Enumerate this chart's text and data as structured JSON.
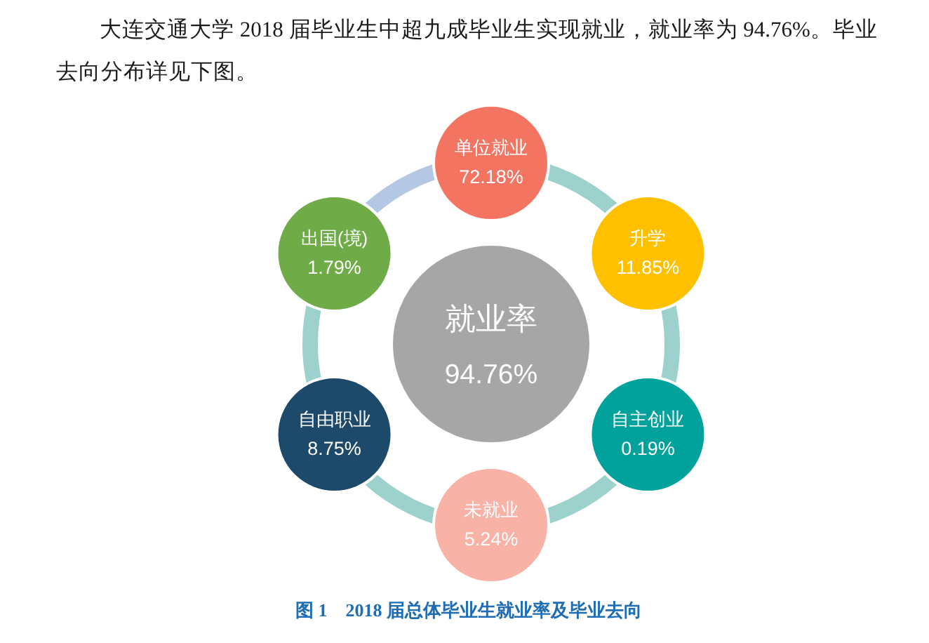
{
  "chart_data": {
    "type": "other",
    "title": "图 1　2018 届总体毕业生就业率及毕业去向",
    "annotations": [
      "大连交通大学 2018 届毕业生中超九成毕业生实现就业，就业率为 94.76%。毕业去向分布详见下图。"
    ],
    "categories": [
      "就业率",
      "单位就业",
      "升学",
      "自主创业",
      "未就业",
      "自由职业",
      "出国(境)"
    ],
    "values": [
      94.76,
      72.18,
      11.85,
      0.19,
      5.24,
      8.75,
      1.79
    ],
    "value_labels": [
      "94.76%",
      "72.18%",
      "11.85%",
      "0.19%",
      "5.24%",
      "8.75%",
      "1.79%"
    ],
    "colors": [
      "#a6a6a6",
      "#f47462",
      "#ffc000",
      "#00a29b",
      "#f8b2a6",
      "#1d4a6b",
      "#6fac47"
    ]
  }
}
